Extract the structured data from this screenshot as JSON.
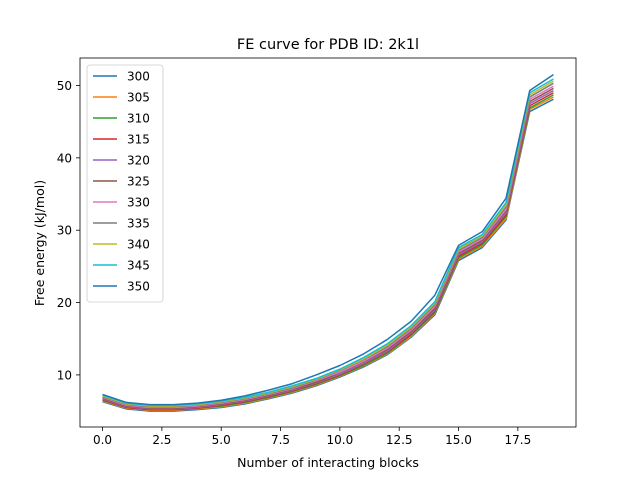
{
  "chart_data": {
    "type": "line",
    "title": "FE curve for PDB ID: 2k1l",
    "xlabel": "Number of interacting blocks",
    "ylabel": "Free energy (kJ/mol)",
    "xlim": [
      -0.95,
      19.95
    ],
    "ylim": [
      2.8,
      53.8
    ],
    "xticks": [
      0.0,
      2.5,
      5.0,
      7.5,
      10.0,
      12.5,
      15.0,
      17.5
    ],
    "xtick_labels": [
      "0.0",
      "2.5",
      "5.0",
      "7.5",
      "10.0",
      "12.5",
      "15.0",
      "17.5"
    ],
    "yticks": [
      10,
      20,
      30,
      40,
      50
    ],
    "ytick_labels": [
      "10",
      "20",
      "30",
      "40",
      "50"
    ],
    "grid": false,
    "legend_position": "top-left",
    "x": [
      0,
      1,
      2,
      3,
      4,
      5,
      6,
      7,
      8,
      9,
      10,
      11,
      12,
      13,
      14,
      15,
      16,
      17,
      18,
      19
    ],
    "series": [
      {
        "name": "300",
        "color": "#1f77b4",
        "values": [
          6.3,
          5.3,
          5.0,
          5.0,
          5.2,
          5.5,
          6.0,
          6.7,
          7.5,
          8.5,
          9.7,
          11.1,
          12.8,
          15.2,
          18.3,
          25.8,
          27.6,
          31.4,
          46.4,
          48.1
        ]
      },
      {
        "name": "305",
        "color": "#ff7f0e",
        "values": [
          6.4,
          5.4,
          5.1,
          5.1,
          5.3,
          5.6,
          6.1,
          6.8,
          7.6,
          8.6,
          9.8,
          11.2,
          12.9,
          15.3,
          18.5,
          26.0,
          27.8,
          31.6,
          46.7,
          48.4
        ]
      },
      {
        "name": "310",
        "color": "#2ca02c",
        "values": [
          6.5,
          5.5,
          5.2,
          5.2,
          5.4,
          5.7,
          6.2,
          6.9,
          7.7,
          8.7,
          9.9,
          11.3,
          13.0,
          15.5,
          18.6,
          26.2,
          28.0,
          31.9,
          46.9,
          48.7
        ]
      },
      {
        "name": "315",
        "color": "#d62728",
        "values": [
          6.6,
          5.5,
          5.2,
          5.2,
          5.4,
          5.8,
          6.3,
          7.0,
          7.8,
          8.8,
          10.0,
          11.5,
          13.2,
          15.6,
          18.8,
          26.4,
          28.2,
          32.1,
          47.2,
          49.0
        ]
      },
      {
        "name": "320",
        "color": "#9467bd",
        "values": [
          6.7,
          5.6,
          5.3,
          5.3,
          5.5,
          5.9,
          6.4,
          7.1,
          7.9,
          8.9,
          10.1,
          11.6,
          13.3,
          15.8,
          19.0,
          26.6,
          28.4,
          32.4,
          47.5,
          49.3
        ]
      },
      {
        "name": "325",
        "color": "#8c564b",
        "values": [
          6.8,
          5.7,
          5.4,
          5.4,
          5.6,
          6.0,
          6.5,
          7.2,
          8.0,
          9.0,
          10.3,
          11.8,
          13.5,
          16.0,
          19.2,
          26.8,
          28.6,
          32.7,
          47.8,
          49.6
        ]
      },
      {
        "name": "330",
        "color": "#e377c2",
        "values": [
          6.9,
          5.8,
          5.5,
          5.5,
          5.7,
          6.1,
          6.6,
          7.3,
          8.1,
          9.2,
          10.4,
          11.9,
          13.7,
          16.2,
          19.5,
          27.0,
          28.8,
          32.9,
          48.1,
          49.9
        ]
      },
      {
        "name": "335",
        "color": "#7f7f7f",
        "values": [
          7.0,
          5.9,
          5.6,
          5.6,
          5.8,
          6.2,
          6.7,
          7.4,
          8.2,
          9.3,
          10.6,
          12.1,
          13.9,
          16.4,
          19.7,
          27.2,
          29.0,
          33.2,
          48.4,
          50.3
        ]
      },
      {
        "name": "340",
        "color": "#bcbd22",
        "values": [
          7.1,
          6.0,
          5.7,
          5.7,
          5.9,
          6.3,
          6.8,
          7.5,
          8.4,
          9.4,
          10.7,
          12.2,
          14.1,
          16.6,
          19.9,
          27.4,
          29.2,
          33.5,
          48.7,
          50.6
        ]
      },
      {
        "name": "345",
        "color": "#17becf",
        "values": [
          7.2,
          6.1,
          5.8,
          5.8,
          6.0,
          6.4,
          6.9,
          7.6,
          8.5,
          9.5,
          10.8,
          12.4,
          14.3,
          16.8,
          20.1,
          27.6,
          29.4,
          33.8,
          49.0,
          50.9
        ]
      },
      {
        "name": "350",
        "color": "#1f77b4",
        "values": [
          7.3,
          6.2,
          5.9,
          5.9,
          6.1,
          6.5,
          7.1,
          7.9,
          8.8,
          10.0,
          11.3,
          12.9,
          14.9,
          17.4,
          21.0,
          27.9,
          29.8,
          34.4,
          49.3,
          51.5
        ]
      }
    ]
  }
}
